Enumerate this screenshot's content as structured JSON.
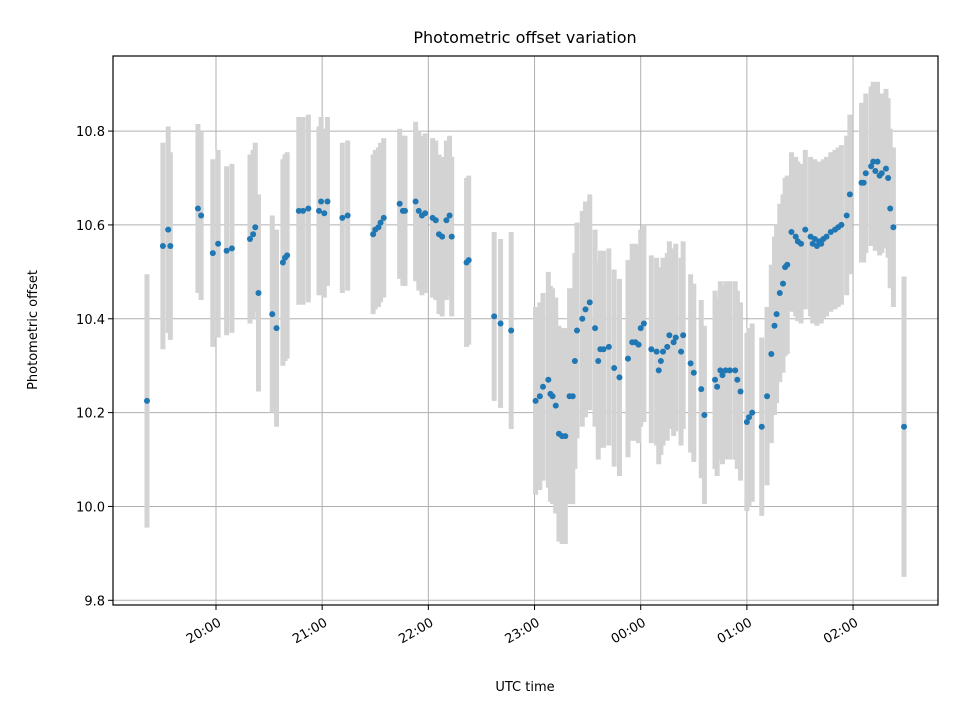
{
  "colors": {
    "point": "#1f77b4",
    "errorbar": "#d3d3d3",
    "grid": "#b0b0b0",
    "axes": "#000000",
    "background": "#ffffff"
  },
  "chart_data": {
    "type": "scatter",
    "title": "Photometric offset variation",
    "xlabel": "UTC time",
    "ylabel": "Photometric offset",
    "x_unit": "hours UTC (values past 24 are after midnight)",
    "xlim": [
      19.03,
      26.8
    ],
    "ylim": [
      9.79,
      10.96
    ],
    "grid": true,
    "legend": "none",
    "xticks": [
      {
        "value": 20,
        "label": "20:00"
      },
      {
        "value": 21,
        "label": "21:00"
      },
      {
        "value": 22,
        "label": "22:00"
      },
      {
        "value": 23,
        "label": "23:00"
      },
      {
        "value": 24,
        "label": "00:00"
      },
      {
        "value": 25,
        "label": "01:00"
      },
      {
        "value": 26,
        "label": "02:00"
      }
    ],
    "yticks": [
      {
        "value": 9.8,
        "label": "9.8"
      },
      {
        "value": 10.0,
        "label": "10.0"
      },
      {
        "value": 10.2,
        "label": "10.2"
      },
      {
        "value": 10.4,
        "label": "10.4"
      },
      {
        "value": 10.6,
        "label": "10.6"
      },
      {
        "value": 10.8,
        "label": "10.8"
      }
    ],
    "series": [
      {
        "points": [
          [
            19.35,
            10.225,
            0.27
          ],
          [
            19.5,
            10.555,
            0.22
          ],
          [
            19.55,
            10.59,
            0.22
          ],
          [
            19.57,
            10.555,
            0.2
          ],
          [
            19.83,
            10.635,
            0.18
          ],
          [
            19.86,
            10.62,
            0.18
          ],
          [
            19.97,
            10.54,
            0.2
          ],
          [
            20.02,
            10.56,
            0.2
          ],
          [
            20.1,
            10.545,
            0.18
          ],
          [
            20.15,
            10.55,
            0.18
          ],
          [
            20.32,
            10.57,
            0.18
          ],
          [
            20.35,
            10.58,
            0.18
          ],
          [
            20.37,
            10.595,
            0.18
          ],
          [
            20.4,
            10.455,
            0.21
          ],
          [
            20.53,
            10.41,
            0.21
          ],
          [
            20.57,
            10.38,
            0.21
          ],
          [
            20.63,
            10.52,
            0.22
          ],
          [
            20.65,
            10.53,
            0.22
          ],
          [
            20.67,
            10.535,
            0.22
          ],
          [
            20.78,
            10.63,
            0.2
          ],
          [
            20.82,
            10.63,
            0.2
          ],
          [
            20.87,
            10.635,
            0.2
          ],
          [
            20.97,
            10.63,
            0.18
          ],
          [
            20.99,
            10.65,
            0.18
          ],
          [
            21.02,
            10.625,
            0.18
          ],
          [
            21.05,
            10.65,
            0.18
          ],
          [
            21.19,
            10.615,
            0.16
          ],
          [
            21.24,
            10.62,
            0.16
          ],
          [
            21.48,
            10.58,
            0.17
          ],
          [
            21.5,
            10.59,
            0.17
          ],
          [
            21.53,
            10.595,
            0.17
          ],
          [
            21.55,
            10.605,
            0.17
          ],
          [
            21.58,
            10.615,
            0.17
          ],
          [
            21.73,
            10.645,
            0.16
          ],
          [
            21.76,
            10.63,
            0.16
          ],
          [
            21.78,
            10.63,
            0.16
          ],
          [
            21.88,
            10.65,
            0.17
          ],
          [
            21.91,
            10.63,
            0.17
          ],
          [
            21.94,
            10.62,
            0.17
          ],
          [
            21.97,
            10.625,
            0.17
          ],
          [
            22.04,
            10.615,
            0.17
          ],
          [
            22.07,
            10.61,
            0.17
          ],
          [
            22.1,
            10.58,
            0.17
          ],
          [
            22.13,
            10.575,
            0.17
          ],
          [
            22.17,
            10.61,
            0.17
          ],
          [
            22.2,
            10.62,
            0.17
          ],
          [
            22.22,
            10.575,
            0.17
          ],
          [
            22.36,
            10.52,
            0.18
          ],
          [
            22.38,
            10.525,
            0.18
          ],
          [
            22.62,
            10.405,
            0.18
          ],
          [
            22.68,
            10.39,
            0.18
          ],
          [
            22.78,
            10.375,
            0.21
          ],
          [
            23.01,
            10.225,
            0.2
          ],
          [
            23.05,
            10.235,
            0.2
          ],
          [
            23.08,
            10.255,
            0.2
          ],
          [
            23.13,
            10.27,
            0.23
          ],
          [
            23.15,
            10.24,
            0.23
          ],
          [
            23.17,
            10.235,
            0.23
          ],
          [
            23.2,
            10.215,
            0.23
          ],
          [
            23.23,
            10.155,
            0.23
          ],
          [
            23.26,
            10.15,
            0.23
          ],
          [
            23.29,
            10.15,
            0.23
          ],
          [
            23.33,
            10.235,
            0.23
          ],
          [
            23.36,
            10.235,
            0.23
          ],
          [
            23.38,
            10.31,
            0.23
          ],
          [
            23.4,
            10.375,
            0.23
          ],
          [
            23.45,
            10.4,
            0.23
          ],
          [
            23.48,
            10.42,
            0.23
          ],
          [
            23.52,
            10.435,
            0.23
          ],
          [
            23.57,
            10.38,
            0.21
          ],
          [
            23.6,
            10.31,
            0.21
          ],
          [
            23.62,
            10.335,
            0.21
          ],
          [
            23.65,
            10.335,
            0.21
          ],
          [
            23.7,
            10.34,
            0.21
          ],
          [
            23.75,
            10.295,
            0.21
          ],
          [
            23.8,
            10.275,
            0.21
          ],
          [
            23.88,
            10.315,
            0.21
          ],
          [
            23.92,
            10.35,
            0.21
          ],
          [
            23.95,
            10.35,
            0.21
          ],
          [
            23.98,
            10.345,
            0.21
          ],
          [
            24.0,
            10.38,
            0.21
          ],
          [
            24.03,
            10.39,
            0.21
          ],
          [
            24.1,
            10.335,
            0.2
          ],
          [
            24.15,
            10.33,
            0.2
          ],
          [
            24.17,
            10.29,
            0.2
          ],
          [
            24.19,
            10.31,
            0.2
          ],
          [
            24.21,
            10.33,
            0.2
          ],
          [
            24.25,
            10.34,
            0.2
          ],
          [
            24.27,
            10.365,
            0.2
          ],
          [
            24.31,
            10.35,
            0.2
          ],
          [
            24.33,
            10.36,
            0.2
          ],
          [
            24.38,
            10.33,
            0.2
          ],
          [
            24.4,
            10.365,
            0.2
          ],
          [
            24.47,
            10.305,
            0.19
          ],
          [
            24.5,
            10.285,
            0.19
          ],
          [
            24.57,
            10.25,
            0.19
          ],
          [
            24.6,
            10.195,
            0.19
          ],
          [
            24.7,
            10.27,
            0.19
          ],
          [
            24.72,
            10.255,
            0.19
          ],
          [
            24.75,
            10.29,
            0.19
          ],
          [
            24.77,
            10.28,
            0.19
          ],
          [
            24.8,
            10.29,
            0.19
          ],
          [
            24.84,
            10.29,
            0.19
          ],
          [
            24.89,
            10.29,
            0.19
          ],
          [
            24.91,
            10.27,
            0.19
          ],
          [
            24.94,
            10.245,
            0.19
          ],
          [
            25.0,
            10.18,
            0.19
          ],
          [
            25.02,
            10.19,
            0.19
          ],
          [
            25.05,
            10.2,
            0.19
          ],
          [
            25.14,
            10.17,
            0.19
          ],
          [
            25.19,
            10.235,
            0.19
          ],
          [
            25.23,
            10.325,
            0.19
          ],
          [
            25.26,
            10.385,
            0.19
          ],
          [
            25.28,
            10.41,
            0.19
          ],
          [
            25.31,
            10.455,
            0.19
          ],
          [
            25.34,
            10.475,
            0.19
          ],
          [
            25.36,
            10.51,
            0.19
          ],
          [
            25.38,
            10.515,
            0.19
          ],
          [
            25.42,
            10.585,
            0.17
          ],
          [
            25.46,
            10.575,
            0.17
          ],
          [
            25.48,
            10.565,
            0.17
          ],
          [
            25.51,
            10.56,
            0.17
          ],
          [
            25.55,
            10.59,
            0.17
          ],
          [
            25.6,
            10.575,
            0.17
          ],
          [
            25.62,
            10.56,
            0.17
          ],
          [
            25.64,
            10.57,
            0.17
          ],
          [
            25.66,
            10.555,
            0.17
          ],
          [
            25.68,
            10.565,
            0.17
          ],
          [
            25.7,
            10.56,
            0.17
          ],
          [
            25.72,
            10.57,
            0.17
          ],
          [
            25.75,
            10.575,
            0.17
          ],
          [
            25.79,
            10.585,
            0.17
          ],
          [
            25.83,
            10.59,
            0.17
          ],
          [
            25.86,
            10.595,
            0.17
          ],
          [
            25.89,
            10.6,
            0.17
          ],
          [
            25.94,
            10.62,
            0.17
          ],
          [
            25.97,
            10.665,
            0.17
          ],
          [
            26.08,
            10.69,
            0.17
          ],
          [
            26.1,
            10.69,
            0.17
          ],
          [
            26.12,
            10.71,
            0.17
          ],
          [
            26.17,
            10.725,
            0.17
          ],
          [
            26.19,
            10.735,
            0.17
          ],
          [
            26.21,
            10.715,
            0.17
          ],
          [
            26.23,
            10.735,
            0.17
          ],
          [
            26.25,
            10.705,
            0.17
          ],
          [
            26.27,
            10.71,
            0.17
          ],
          [
            26.31,
            10.72,
            0.17
          ],
          [
            26.33,
            10.7,
            0.17
          ],
          [
            26.35,
            10.635,
            0.17
          ],
          [
            26.38,
            10.595,
            0.17
          ],
          [
            26.48,
            10.17,
            0.32
          ]
        ]
      }
    ]
  }
}
